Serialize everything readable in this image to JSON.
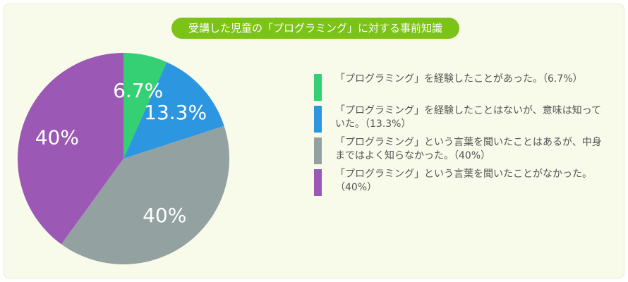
{
  "chart_data": {
    "type": "pie",
    "title": "受講した児童の「プログラミング」に対する事前知識",
    "slices": [
      {
        "label": "6.7%",
        "value": 6.7,
        "color": "#34d073",
        "legend": "「プログラミング」を経験したことがあった。（6.7%）"
      },
      {
        "label": "13.3%",
        "value": 13.3,
        "color": "#2c96e0",
        "legend": "「プログラミング」を経験したことはないが、意味は知っていた。（13.3%）"
      },
      {
        "label": "40%",
        "value": 40,
        "color": "#93a1a1",
        "legend": "「プログラミング」という言葉を聞いたことはあるが、中身まではよく知らなかった。（40%）"
      },
      {
        "label": "40%",
        "value": 40,
        "color": "#9b58b5",
        "legend": "「プログラミング」という言葉を聞いたことがなかった。（40%）"
      }
    ],
    "legend_position": "right"
  }
}
